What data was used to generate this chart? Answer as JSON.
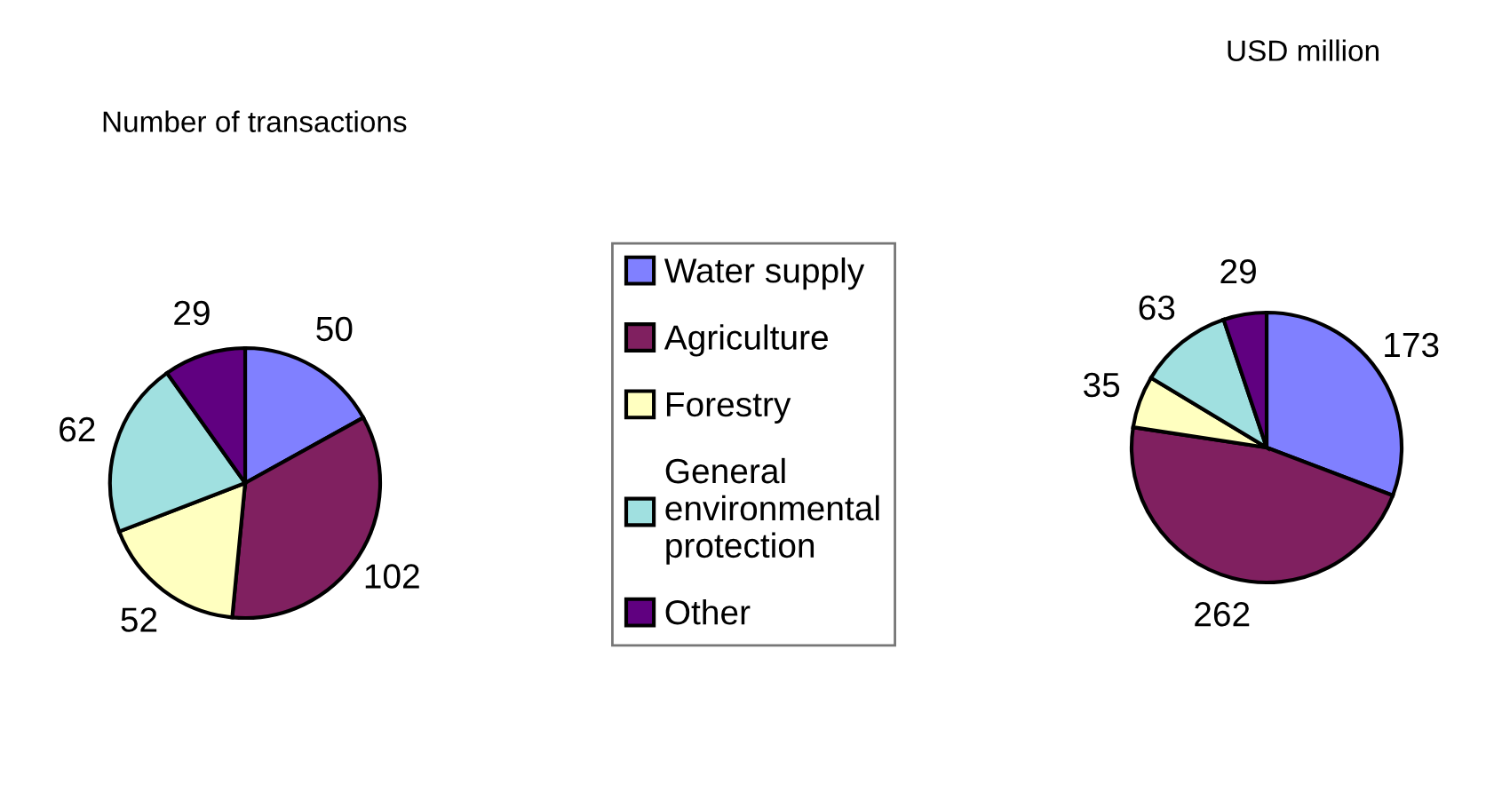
{
  "chart_data": [
    {
      "type": "pie",
      "title": "Number of transactions",
      "categories": [
        "Water supply",
        "Agriculture",
        "Forestry",
        "General environmental protection",
        "Other"
      ],
      "values": [
        50,
        102,
        52,
        62,
        29
      ],
      "data_labels": true,
      "colors": [
        "#8080ff",
        "#802060",
        "#ffffc0",
        "#a0e0e0",
        "#600080"
      ],
      "legend": "right"
    },
    {
      "type": "pie",
      "title": "USD million",
      "categories": [
        null,
        null,
        null,
        null,
        null
      ],
      "values": [
        173,
        262,
        35,
        63,
        29
      ],
      "data_labels": true,
      "colors": [
        "#8080ff",
        "#802060",
        "#ffffc0",
        "#a0e0e0",
        "#600080"
      ]
    }
  ]
}
